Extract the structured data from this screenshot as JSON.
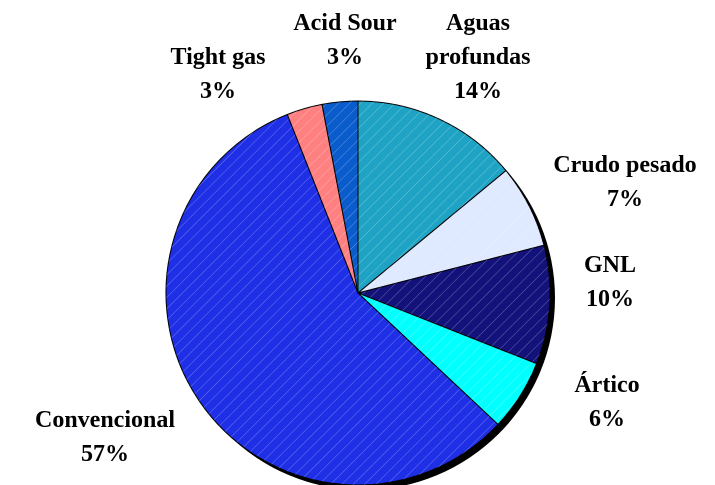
{
  "chart_data": {
    "type": "pie",
    "categories": [
      "Aguas profundas",
      "Crudo pesado",
      "GNL",
      "Ártico",
      "Convencional",
      "Tight gas",
      "Acid Sour"
    ],
    "values": [
      14,
      7,
      10,
      6,
      57,
      3,
      3
    ],
    "value_labels": [
      "14%",
      "7%",
      "10%",
      "6%",
      "57%",
      "3%",
      "3%"
    ],
    "colors": [
      "#1fa3c4",
      "#dfe9ff",
      "#12127a",
      "#00ffff",
      "#1f2fe6",
      "#ff8080",
      "#0a5ccc"
    ]
  }
}
